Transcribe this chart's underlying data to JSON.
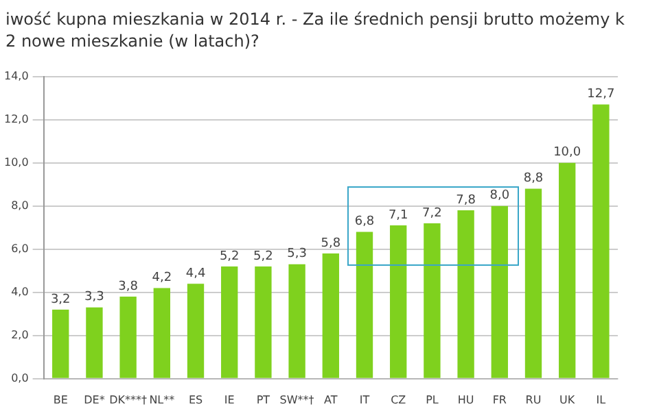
{
  "chart_data": {
    "type": "bar",
    "title": "iwość kupna mieszkania w 2014 r. - Za ile średnich pensji brutto możemy k",
    "subtitle": "2 nowe mieszkanie (w latach)?",
    "categories": [
      "BE",
      "DE*",
      "DK***†",
      "NL**",
      "ES",
      "IE",
      "PT",
      "SW**†",
      "AT",
      "IT",
      "CZ",
      "PL",
      "HU",
      "FR",
      "RU",
      "UK",
      "IL"
    ],
    "values": [
      3.2,
      3.3,
      3.8,
      4.2,
      4.4,
      5.2,
      5.2,
      5.3,
      5.8,
      6.8,
      7.1,
      7.2,
      7.8,
      8.0,
      8.8,
      10.0,
      12.7
    ],
    "value_labels": [
      "3,2",
      "3,3",
      "3,8",
      "4,2",
      "4,4",
      "5,2",
      "5,2",
      "5,3",
      "5,8",
      "6,8",
      "7,1",
      "7,2",
      "7,8",
      "8,0",
      "8,8",
      "10,0",
      "12,7"
    ],
    "color": "#7fd11e",
    "ylim": [
      0,
      14
    ],
    "yticks": [
      {
        "value": 0,
        "label": "0,0"
      },
      {
        "value": 2,
        "label": "2,0"
      },
      {
        "value": 4,
        "label": "4,0"
      },
      {
        "value": 6,
        "label": "6,0"
      },
      {
        "value": 8,
        "label": "8,0"
      },
      {
        "value": 10,
        "label": "10,0"
      },
      {
        "value": 12,
        "label": "12,0"
      },
      {
        "value": 14,
        "label": "14,0"
      }
    ],
    "grid": "y",
    "legend": false
  }
}
